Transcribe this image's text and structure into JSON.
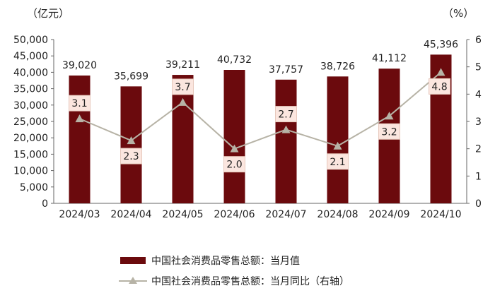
{
  "chart_data": {
    "type": "bar",
    "left_unit": "（亿元）",
    "right_unit": "（%）",
    "categories": [
      "2024/03",
      "2024/04",
      "2024/05",
      "2024/06",
      "2024/07",
      "2024/08",
      "2024/09",
      "2024/10"
    ],
    "series": [
      {
        "name": "中国社会消费品零售总额：当月值",
        "type": "bar",
        "axis": "left",
        "color": "#6b0a0d",
        "values": [
          39020,
          35699,
          39211,
          40732,
          37757,
          38726,
          41112,
          45396
        ],
        "labels": [
          "39,020",
          "35,699",
          "39,211",
          "40,732",
          "37,757",
          "38,726",
          "41,112",
          "45,396"
        ]
      },
      {
        "name": "中国社会消费品零售总额：当月同比（右轴）",
        "type": "line",
        "axis": "right",
        "color": "#b7b3a6",
        "values": [
          3.1,
          2.3,
          3.7,
          2.0,
          2.7,
          2.1,
          3.2,
          4.8
        ],
        "labels": [
          "3.1",
          "2.3",
          "3.7",
          "2.0",
          "2.7",
          "2.1",
          "3.2",
          "4.8"
        ]
      }
    ],
    "y_left": {
      "range": [
        0,
        50000
      ],
      "ticks": [
        "0",
        "5,000",
        "10,000",
        "15,000",
        "20,000",
        "25,000",
        "30,000",
        "35,000",
        "40,000",
        "45,000",
        "50,000"
      ]
    },
    "y_right": {
      "range": [
        0,
        6
      ],
      "ticks": [
        "0",
        "1",
        "2",
        "3",
        "4",
        "5",
        "6"
      ]
    },
    "legend_position": "bottom",
    "grid": false
  }
}
